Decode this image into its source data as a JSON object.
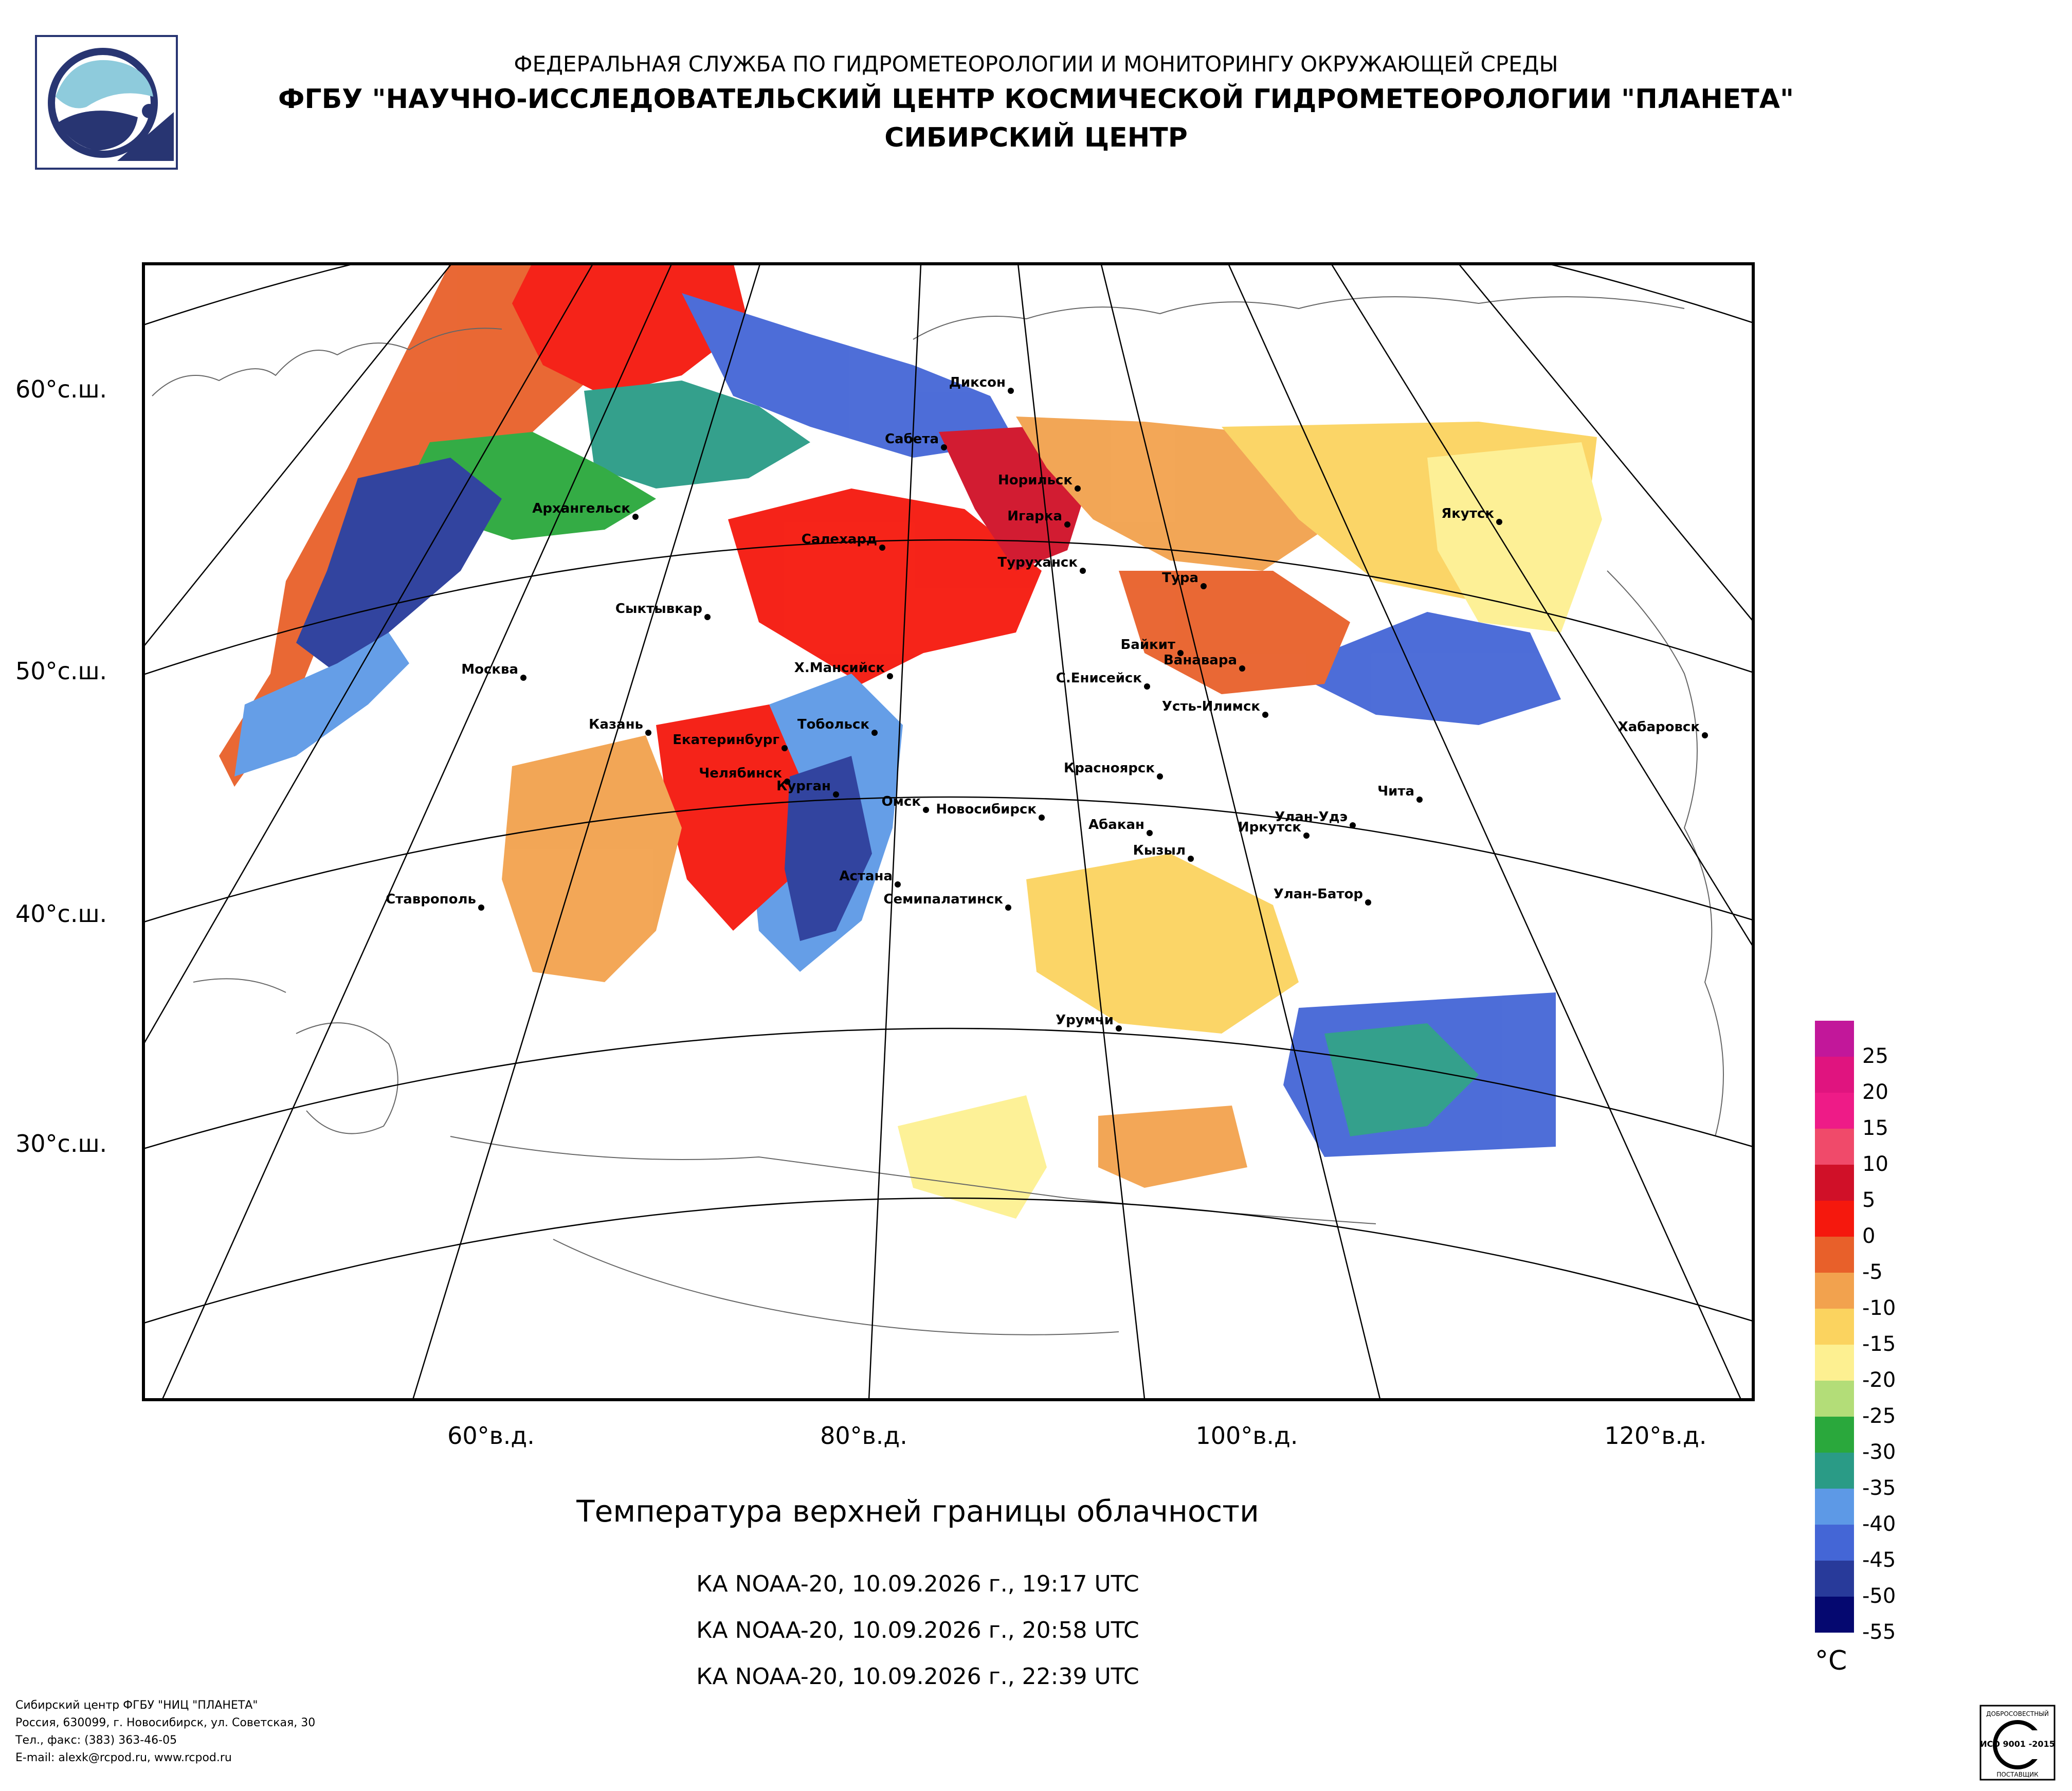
{
  "header": {
    "agency": "ФЕДЕРАЛЬНАЯ СЛУЖБА ПО ГИДРОМЕТЕОРОЛОГИИ И МОНИТОРИНГУ ОКРУЖАЮЩЕЙ СРЕДЫ",
    "institute": "ФГБУ \"НАУЧНО-ИССЛЕДОВАТЕЛЬСКИЙ ЦЕНТР КОСМИЧЕСКОЙ ГИДРОМЕТЕОРОЛОГИИ \"ПЛАНЕТА\"",
    "center": "СИБИРСКИЙ ЦЕНТР"
  },
  "map": {
    "lat_labels": [
      "60°с.ш.",
      "50°с.ш.",
      "40°с.ш.",
      "30°с.ш."
    ],
    "lon_labels": [
      "60°в.д.",
      "80°в.д.",
      "100°в.д.",
      "120°в.д."
    ],
    "cities": [
      "Диксон",
      "Сабета",
      "Норильск",
      "Игарка",
      "Архангельск",
      "Салехард",
      "Туруханск",
      "Тура",
      "Якутск",
      "Сыктывкар",
      "Байкит",
      "Ванавара",
      "Москва",
      "Х.Мансийск",
      "С.Енисейск",
      "Усть-Илимск",
      "Хабаровск",
      "Казань",
      "Екатеринбург",
      "Тобольск",
      "Челябинск",
      "Курган",
      "Красноярск",
      "Чита",
      "Омск",
      "Новосибирск",
      "Абакан",
      "Улан-Удэ",
      "Иркутск",
      "Кызыл",
      "Астана",
      "Ставрополь",
      "Семипалатинск",
      "Улан-Батор",
      "Урумчи"
    ]
  },
  "title": "Температура верхней границы облачности",
  "passes": [
    "КА NOAA-20, 10.09.2026 г., 19:17 UTC",
    "КА NOAA-20, 10.09.2026 г., 20:58 UTC",
    "КА NOAA-20, 10.09.2026 г., 22:39 UTC"
  ],
  "legend": {
    "unit": "°C",
    "labels": [
      "25",
      "20",
      "15",
      "10",
      "5",
      "0",
      "-5",
      "-10",
      "-15",
      "-20",
      "-25",
      "-30",
      "-35",
      "-40",
      "-45",
      "-50",
      "-55"
    ],
    "colors": [
      "#c2179a",
      "#e0147f",
      "#ee1b87",
      "#f04a6a",
      "#d01028",
      "#f5180d",
      "#e8602a",
      "#f2a24e",
      "#fbd35f",
      "#fdf091",
      "#b3dd78",
      "#2aa83c",
      "#2a9b86",
      "#5d99e6",
      "#4466d6",
      "#283a9a",
      "#050870"
    ]
  },
  "footer": [
    "Сибирский центр ФГБУ \"НИЦ \"ПЛАНЕТА\"",
    "Россия, 630099, г. Новосибирск, ул. Советская, 30",
    "Тел., факс: (383) 363-46-05",
    "E-mail: alexk@rcpod.ru, www.rcpod.ru"
  ],
  "certification": {
    "top": "ДОБРОСОВЕСТНЫЙ",
    "standard": "ИСО 9001 -2015",
    "bottom": "ПОСТАВЩИК"
  }
}
